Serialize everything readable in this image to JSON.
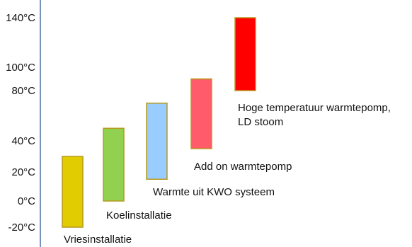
{
  "chart_data": {
    "type": "floating-bar",
    "title": "",
    "xlabel": "",
    "ylabel": "",
    "y_ticks": [
      "140°C",
      "100°C",
      "80°C",
      "40°C",
      "20°C",
      "0°C",
      "-20°C"
    ],
    "y_tick_values": [
      140,
      100,
      80,
      40,
      20,
      0,
      -20
    ],
    "ylim": [
      -30,
      145
    ],
    "grid": false,
    "legend": "none",
    "series": [
      {
        "label": "Vriesinstallatie",
        "low": -20,
        "high": 30,
        "color": "#e0cc00"
      },
      {
        "label": "Koelinstallatie",
        "low": 0,
        "high": 50,
        "color": "#92d050"
      },
      {
        "label": "Warmte uit KWO systeem",
        "low": 15,
        "high": 70,
        "color": "#99ccff"
      },
      {
        "label": "Add on warmtepomp",
        "low": 35,
        "high": 90,
        "color": "#ff5b6b"
      },
      {
        "label": "Hoge temperatuur warmtepomp, LD stoom",
        "label_lines": [
          "Hoge temperatuur warmtepomp,",
          "LD stoom"
        ],
        "low": 80,
        "high": 140,
        "color": "#ff0000"
      }
    ],
    "bar_border_color": "#b79a1c",
    "axis_color": "#4a6fa5"
  }
}
